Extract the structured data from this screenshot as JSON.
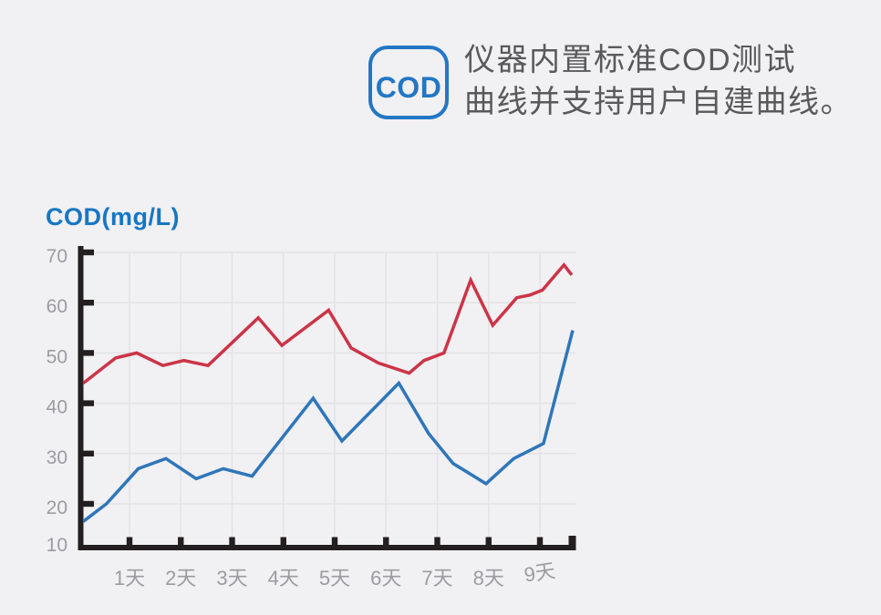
{
  "page": {
    "background": "#f1f0f2"
  },
  "header": {
    "badge": {
      "label": "COD",
      "color": "#2277c5"
    },
    "title_lines": [
      "仪器内置标准COD测试",
      "曲线并支持用户自建曲线。"
    ],
    "text_color": "#58595b"
  },
  "chart_data": {
    "type": "line",
    "title": "COD(mg/L)",
    "title_color": "#1577c5",
    "xlabel": "",
    "ylabel": "COD(mg/L)",
    "x_tick_labels": [
      "1天",
      "2天",
      "3天",
      "4天",
      "5天",
      "6天",
      "7天",
      "8天",
      "9天"
    ],
    "y_ticks": [
      70,
      60,
      50,
      40,
      30,
      20,
      10
    ],
    "ylim": [
      10,
      70
    ],
    "xlim_days": [
      0,
      9.7
    ],
    "grid": true,
    "legend": "none",
    "axis_color": "#231f20",
    "grid_color": "#e3e2e5",
    "label_color": "#9c9ca0",
    "series": [
      {
        "name": "red-line",
        "color": "#cb3447",
        "points_day_value": [
          [
            0.1,
            44
          ],
          [
            0.73,
            49
          ],
          [
            1.14,
            50
          ],
          [
            1.65,
            47.5
          ],
          [
            2.06,
            48.5
          ],
          [
            2.53,
            47.5
          ],
          [
            3.51,
            57
          ],
          [
            3.97,
            51.5
          ],
          [
            4.88,
            58.5
          ],
          [
            5.32,
            51
          ],
          [
            5.85,
            48
          ],
          [
            6.45,
            46
          ],
          [
            6.74,
            48.5
          ],
          [
            7.13,
            50
          ],
          [
            7.65,
            64.5
          ],
          [
            8.08,
            55.5
          ],
          [
            8.55,
            61
          ],
          [
            8.8,
            61.5
          ],
          [
            9.05,
            62.5
          ],
          [
            9.47,
            67.5
          ],
          [
            9.62,
            65.5
          ]
        ]
      },
      {
        "name": "blue-line",
        "color": "#2e76ba",
        "points_day_value": [
          [
            0.1,
            16.5
          ],
          [
            0.55,
            20
          ],
          [
            1.17,
            27
          ],
          [
            1.71,
            29
          ],
          [
            2.3,
            25
          ],
          [
            2.83,
            27
          ],
          [
            3.39,
            25.5
          ],
          [
            4.58,
            41
          ],
          [
            5.14,
            32.5
          ],
          [
            6.25,
            44
          ],
          [
            6.83,
            34
          ],
          [
            7.31,
            28
          ],
          [
            7.95,
            24
          ],
          [
            8.49,
            29
          ],
          [
            9.07,
            32
          ],
          [
            9.64,
            54.5
          ]
        ]
      }
    ]
  }
}
